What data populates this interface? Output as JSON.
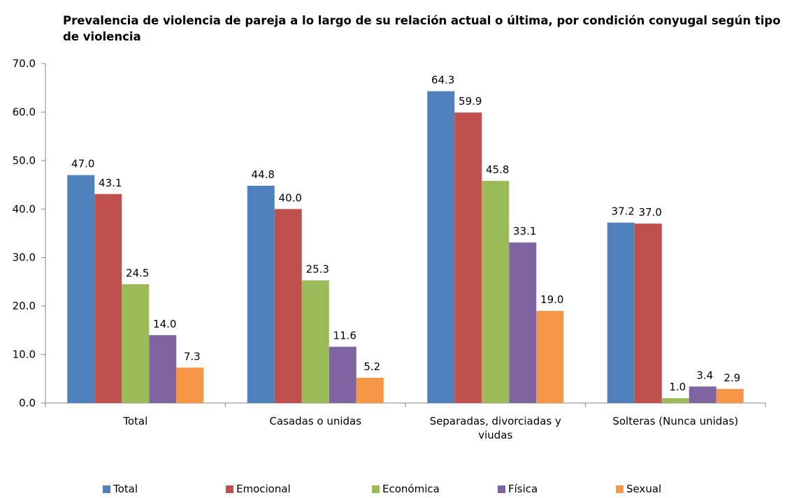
{
  "chart_data": {
    "type": "bar",
    "title": "Prevalencia de violencia de pareja a lo largo de su relación actual o última, por condición conyugal según tipo de violencia",
    "categories": [
      "Total",
      "Casadas o unidas",
      "Separadas, divorciadas y viudas",
      "Solteras (Nunca unidas)"
    ],
    "series": [
      {
        "name": "Total",
        "color": "#4F81BD",
        "values": [
          47.0,
          44.8,
          64.3,
          37.2
        ]
      },
      {
        "name": "Emocional",
        "color": "#C0504D",
        "values": [
          43.1,
          40.0,
          59.9,
          37.0
        ]
      },
      {
        "name": "Económica",
        "color": "#9BBB59",
        "values": [
          24.5,
          25.3,
          45.8,
          1.0
        ]
      },
      {
        "name": "Física",
        "color": "#8064A2",
        "values": [
          14.0,
          11.6,
          33.1,
          3.4
        ]
      },
      {
        "name": "Sexual",
        "color": "#F79646",
        "values": [
          7.3,
          5.2,
          19.0,
          2.9
        ]
      }
    ],
    "ylim": [
      0,
      70
    ],
    "yticks": [
      "0.0",
      "10.0",
      "20.0",
      "30.0",
      "40.0",
      "50.0",
      "60.0",
      "70.0"
    ],
    "grid": false,
    "legend_position": "bottom"
  }
}
